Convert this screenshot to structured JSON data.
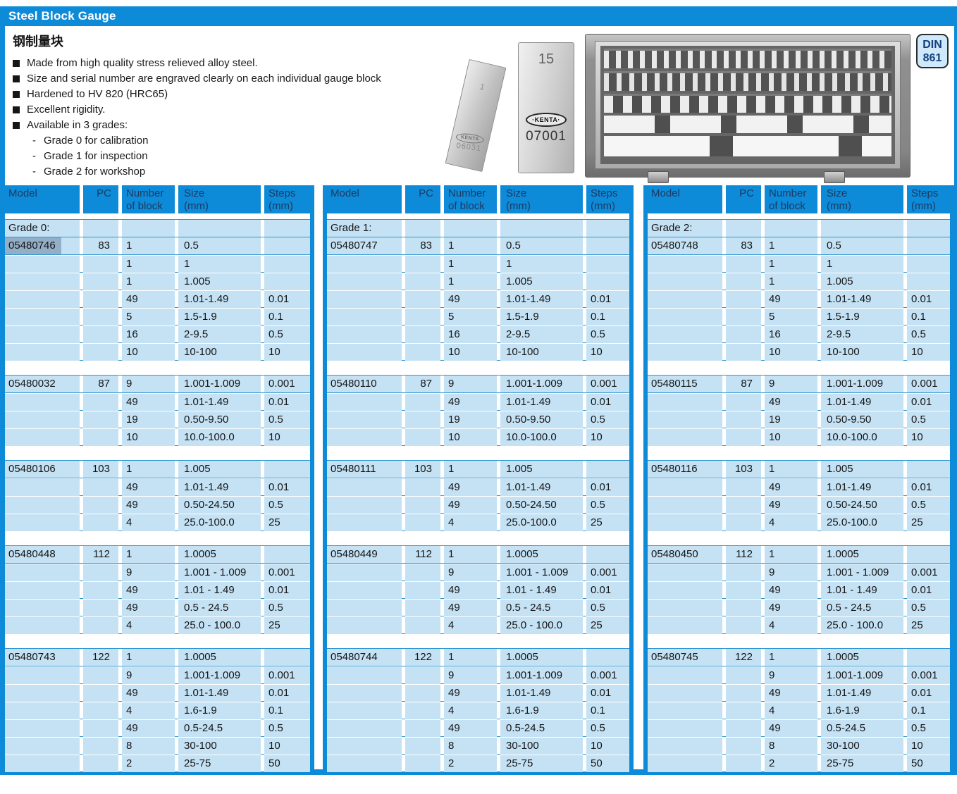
{
  "header": {
    "title": "Steel Block Gauge"
  },
  "intro": {
    "title_cn": "钢制量块",
    "features": [
      "Made from high quality stress relieved alloy steel.",
      "Size and serial number are engraved clearly on each individual gauge block",
      "Hardened to HV 820 (HRC65)",
      "Excellent rigidity.",
      "Available in 3 grades:"
    ],
    "grade_marker": "-",
    "grade_options": [
      "Grade 0 for calibration",
      "Grade 1 for inspection",
      "Grade 2 for workshop"
    ]
  },
  "badge": {
    "line1": "DIN",
    "line2": "861"
  },
  "illustration": {
    "small_block": {
      "size_label": "1",
      "brand": "KENTA",
      "serial": "06031"
    },
    "large_block": {
      "size_label": "15",
      "brand": "·KENTA·",
      "serial": "07001"
    }
  },
  "columns": [
    {
      "l1": "Model",
      "l2": ""
    },
    {
      "l1": "PC",
      "l2": ""
    },
    {
      "l1": "Number",
      "l2": "of block"
    },
    {
      "l1": "Size",
      "l2": "(mm)"
    },
    {
      "l1": "Steps",
      "l2": "(mm)"
    }
  ],
  "colors": {
    "accent_blue": "#0e8bd8",
    "cell_blue": "#c5e2f5",
    "selection": "#93afc7"
  },
  "tables": [
    {
      "grade_label": "Grade 0:",
      "groups": [
        {
          "model": "05480746",
          "pc": "83",
          "selected": true,
          "rows": [
            [
              "1",
              "0.5",
              ""
            ],
            [
              "1",
              "1",
              ""
            ],
            [
              "1",
              "1.005",
              ""
            ],
            [
              "49",
              "1.01-1.49",
              "0.01"
            ],
            [
              "5",
              "1.5-1.9",
              "0.1"
            ],
            [
              "16",
              "2-9.5",
              "0.5"
            ],
            [
              "10",
              "10-100",
              "10"
            ]
          ]
        },
        {
          "model": "05480032",
          "pc": "87",
          "rows": [
            [
              "9",
              "1.001-1.009",
              "0.001"
            ],
            [
              "49",
              "1.01-1.49",
              "0.01"
            ],
            [
              "19",
              "0.50-9.50",
              "0.5"
            ],
            [
              "10",
              "10.0-100.0",
              "10"
            ]
          ]
        },
        {
          "model": "05480106",
          "pc": "103",
          "rows": [
            [
              "1",
              "1.005",
              ""
            ],
            [
              "49",
              "1.01-1.49",
              "0.01"
            ],
            [
              "49",
              "0.50-24.50",
              "0.5"
            ],
            [
              "4",
              "25.0-100.0",
              "25"
            ]
          ]
        },
        {
          "model": "05480448",
          "pc": "112",
          "rows": [
            [
              "1",
              "1.0005",
              ""
            ],
            [
              "9",
              "1.001 - 1.009",
              "0.001"
            ],
            [
              "49",
              "1.01 - 1.49",
              "0.01"
            ],
            [
              "49",
              "0.5 - 24.5",
              "0.5"
            ],
            [
              "4",
              "25.0 - 100.0",
              "25"
            ]
          ]
        },
        {
          "model": "05480743",
          "pc": "122",
          "rows": [
            [
              "1",
              "1.0005",
              ""
            ],
            [
              "9",
              "1.001-1.009",
              "0.001"
            ],
            [
              "49",
              "1.01-1.49",
              "0.01"
            ],
            [
              "4",
              "1.6-1.9",
              "0.1"
            ],
            [
              "49",
              "0.5-24.5",
              "0.5"
            ],
            [
              "8",
              "30-100",
              "10"
            ],
            [
              "2",
              "25-75",
              "50"
            ]
          ]
        }
      ]
    },
    {
      "grade_label": "Grade 1:",
      "groups": [
        {
          "model": "05480747",
          "pc": "83",
          "rows": [
            [
              "1",
              "0.5",
              ""
            ],
            [
              "1",
              "1",
              ""
            ],
            [
              "1",
              "1.005",
              ""
            ],
            [
              "49",
              "1.01-1.49",
              "0.01"
            ],
            [
              "5",
              "1.5-1.9",
              "0.1"
            ],
            [
              "16",
              "2-9.5",
              "0.5"
            ],
            [
              "10",
              "10-100",
              "10"
            ]
          ]
        },
        {
          "model": "05480110",
          "pc": "87",
          "rows": [
            [
              "9",
              "1.001-1.009",
              "0.001"
            ],
            [
              "49",
              "1.01-1.49",
              "0.01"
            ],
            [
              "19",
              "0.50-9.50",
              "0.5"
            ],
            [
              "10",
              "10.0-100.0",
              "10"
            ]
          ]
        },
        {
          "model": "05480111",
          "pc": "103",
          "rows": [
            [
              "1",
              "1.005",
              ""
            ],
            [
              "49",
              "1.01-1.49",
              "0.01"
            ],
            [
              "49",
              "0.50-24.50",
              "0.5"
            ],
            [
              "4",
              "25.0-100.0",
              "25"
            ]
          ]
        },
        {
          "model": "05480449",
          "pc": "112",
          "rows": [
            [
              "1",
              "1.0005",
              ""
            ],
            [
              "9",
              "1.001 - 1.009",
              "0.001"
            ],
            [
              "49",
              "1.01 - 1.49",
              "0.01"
            ],
            [
              "49",
              "0.5 - 24.5",
              "0.5"
            ],
            [
              "4",
              "25.0 - 100.0",
              "25"
            ]
          ]
        },
        {
          "model": "05480744",
          "pc": "122",
          "rows": [
            [
              "1",
              "1.0005",
              ""
            ],
            [
              "9",
              "1.001-1.009",
              "0.001"
            ],
            [
              "49",
              "1.01-1.49",
              "0.01"
            ],
            [
              "4",
              "1.6-1.9",
              "0.1"
            ],
            [
              "49",
              "0.5-24.5",
              "0.5"
            ],
            [
              "8",
              "30-100",
              "10"
            ],
            [
              "2",
              "25-75",
              "50"
            ]
          ]
        }
      ]
    },
    {
      "grade_label": "Grade 2:",
      "groups": [
        {
          "model": "05480748",
          "pc": "83",
          "rows": [
            [
              "1",
              "0.5",
              ""
            ],
            [
              "1",
              "1",
              ""
            ],
            [
              "1",
              "1.005",
              ""
            ],
            [
              "49",
              "1.01-1.49",
              "0.01"
            ],
            [
              "5",
              "1.5-1.9",
              "0.1"
            ],
            [
              "16",
              "2-9.5",
              "0.5"
            ],
            [
              "10",
              "10-100",
              "10"
            ]
          ]
        },
        {
          "model": "05480115",
          "pc": "87",
          "rows": [
            [
              "9",
              "1.001-1.009",
              "0.001"
            ],
            [
              "49",
              "1.01-1.49",
              "0.01"
            ],
            [
              "19",
              "0.50-9.50",
              "0.5"
            ],
            [
              "10",
              "10.0-100.0",
              "10"
            ]
          ]
        },
        {
          "model": "05480116",
          "pc": "103",
          "rows": [
            [
              "1",
              "1.005",
              ""
            ],
            [
              "49",
              "1.01-1.49",
              "0.01"
            ],
            [
              "49",
              "0.50-24.50",
              "0.5"
            ],
            [
              "4",
              "25.0-100.0",
              "25"
            ]
          ]
        },
        {
          "model": "05480450",
          "pc": "112",
          "rows": [
            [
              "1",
              "1.0005",
              ""
            ],
            [
              "9",
              "1.001 - 1.009",
              "0.001"
            ],
            [
              "49",
              "1.01 - 1.49",
              "0.01"
            ],
            [
              "49",
              "0.5 - 24.5",
              "0.5"
            ],
            [
              "4",
              "25.0 - 100.0",
              "25"
            ]
          ]
        },
        {
          "model": "05480745",
          "pc": "122",
          "rows": [
            [
              "1",
              "1.0005",
              ""
            ],
            [
              "9",
              "1.001-1.009",
              "0.001"
            ],
            [
              "49",
              "1.01-1.49",
              "0.01"
            ],
            [
              "4",
              "1.6-1.9",
              "0.1"
            ],
            [
              "49",
              "0.5-24.5",
              "0.5"
            ],
            [
              "8",
              "30-100",
              "10"
            ],
            [
              "2",
              "25-75",
              "50"
            ]
          ]
        }
      ]
    }
  ]
}
